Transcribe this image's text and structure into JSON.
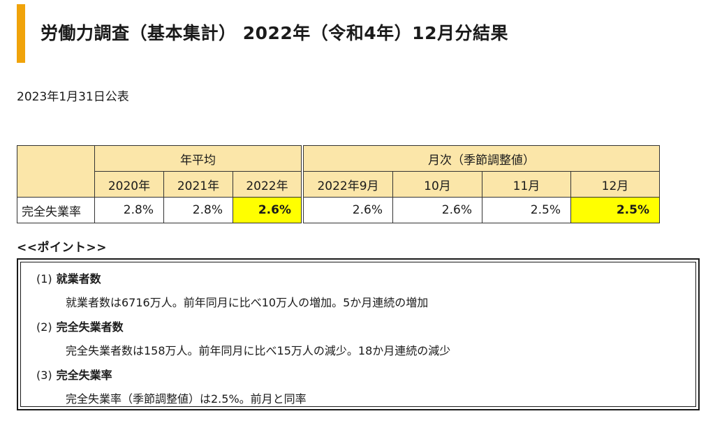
{
  "title": "労働力調査（基本集計） 2022年（令和4年）12月分結果",
  "publish_date": "2023年1月31日公表",
  "table": {
    "group_annual": "年平均",
    "group_monthly": "月次（季節調整値）",
    "annual_cols": [
      "2020年",
      "2021年",
      "2022年"
    ],
    "monthly_cols": [
      "2022年9月",
      "10月",
      "11月",
      "12月"
    ],
    "row_label": "完全失業率",
    "annual_vals": [
      "2.8%",
      "2.8%",
      "2.6%"
    ],
    "monthly_vals": [
      "2.6%",
      "2.6%",
      "2.5%",
      "2.5%"
    ],
    "highlight_color": "#ffff00",
    "header_color": "#fbe6a9"
  },
  "points": {
    "heading": "<<ポイント>>",
    "items": [
      {
        "num": "(1)",
        "title": "就業者数",
        "text": "就業者数は6716万人。前年同月に比べ10万人の増加。5か月連続の増加"
      },
      {
        "num": "(2)",
        "title": "完全失業者数",
        "text": "完全失業者数は158万人。前年同月に比べ15万人の減少。18か月連続の減少"
      },
      {
        "num": "(3)",
        "title": "完全失業率",
        "text": "完全失業率（季節調整値）は2.5%。前月と同率"
      }
    ]
  },
  "accent_color": "#f0a30a"
}
